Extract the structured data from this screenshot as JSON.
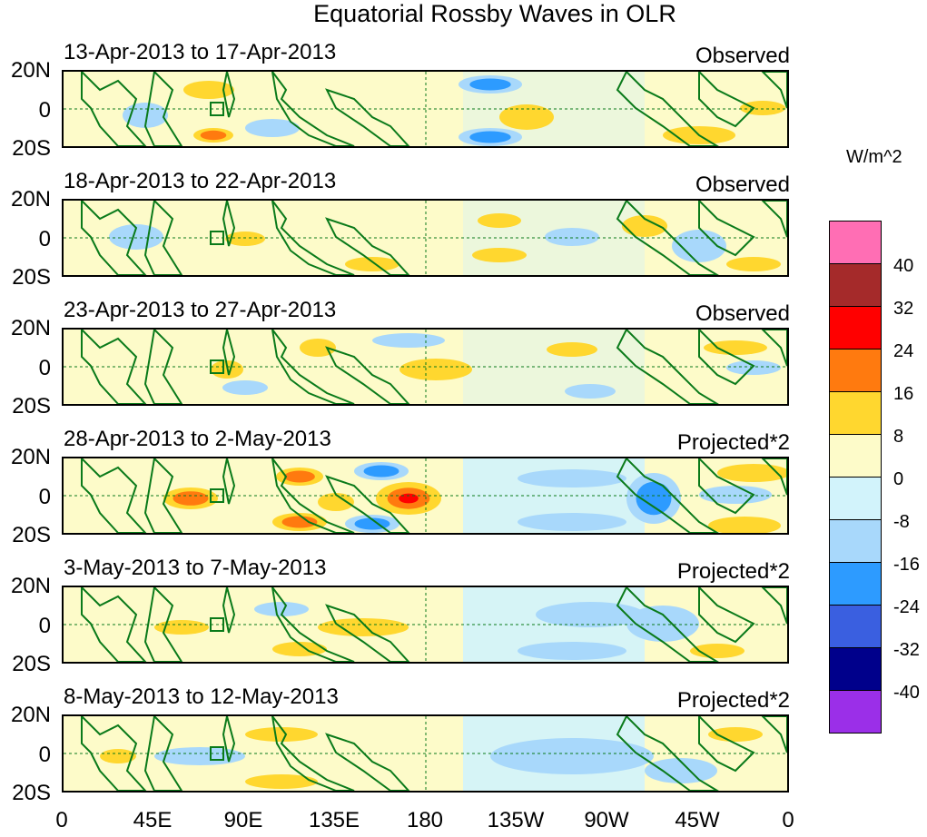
{
  "title": "Equatorial Rossby Waves in OLR",
  "units": "W/m^2",
  "lat_labels": [
    "20N",
    "0",
    "20S"
  ],
  "lon_labels": [
    "0",
    "45E",
    "90E",
    "135E",
    "180",
    "135W",
    "90W",
    "45W",
    "0"
  ],
  "panels": [
    {
      "date": "13-Apr-2013 to 17-Apr-2013",
      "tag": "Observed"
    },
    {
      "date": "18-Apr-2013 to 22-Apr-2013",
      "tag": "Observed"
    },
    {
      "date": "23-Apr-2013 to 27-Apr-2013",
      "tag": "Observed"
    },
    {
      "date": "28-Apr-2013 to 2-May-2013",
      "tag": "Projected*2"
    },
    {
      "date": "3-May-2013 to 7-May-2013",
      "tag": "Projected*2"
    },
    {
      "date": "8-May-2013 to 12-May-2013",
      "tag": "Projected*2"
    }
  ],
  "colorbar": {
    "colors": [
      "#ff6eb4",
      "#a52a2a",
      "#ff0000",
      "#ff7a0f",
      "#ffd72f",
      "#fdfbc9",
      "#d2f3fb",
      "#a8d8fb",
      "#2d9bff",
      "#3a5fe0",
      "#00008b",
      "#9b2fe8"
    ],
    "labels": [
      "40",
      "32",
      "24",
      "16",
      "8",
      "0",
      "-8",
      "-16",
      "-24",
      "-32",
      "-40"
    ]
  }
}
